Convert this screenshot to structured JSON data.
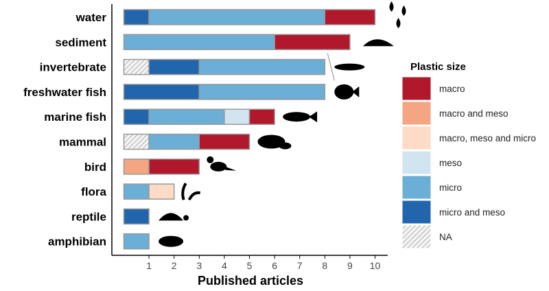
{
  "chart_data": {
    "type": "bar",
    "orientation": "horizontal",
    "stacked": true,
    "xlabel": "Published articles",
    "ylabel": "",
    "xlim": [
      0,
      10.5
    ],
    "xticks": [
      1,
      2,
      3,
      4,
      5,
      6,
      7,
      8,
      9,
      10
    ],
    "grid": false,
    "legend_title": "Plastic size",
    "legend_position": "right",
    "series": [
      {
        "name": "macro",
        "color": "#B2182B"
      },
      {
        "name": "macro and meso",
        "color": "#F4A582"
      },
      {
        "name": "macro, meso and micro",
        "color": "#FDDBC7"
      },
      {
        "name": "meso",
        "color": "#D1E5F0"
      },
      {
        "name": "micro",
        "color": "#6BAED6"
      },
      {
        "name": "micro and meso",
        "color": "#2166AC"
      },
      {
        "name": "NA",
        "color": "hatched"
      }
    ],
    "categories": [
      {
        "name": "water",
        "icon": "water-drops-icon",
        "segments": [
          [
            "micro and meso",
            1
          ],
          [
            "micro",
            7
          ],
          [
            "macro",
            2
          ]
        ]
      },
      {
        "name": "sediment",
        "icon": "sediment-pile-icon",
        "segments": [
          [
            "micro",
            6
          ],
          [
            "macro",
            3
          ]
        ]
      },
      {
        "name": "invertebrate",
        "icon": "crayfish-icon",
        "segments": [
          [
            "NA",
            1
          ],
          [
            "micro and meso",
            2
          ],
          [
            "micro",
            5
          ]
        ]
      },
      {
        "name": "freshwater fish",
        "icon": "freshwater-fish-icon",
        "segments": [
          [
            "micro and meso",
            3
          ],
          [
            "micro",
            5
          ]
        ]
      },
      {
        "name": "marine fish",
        "icon": "marine-fish-icon",
        "segments": [
          [
            "micro and meso",
            1
          ],
          [
            "micro",
            3
          ],
          [
            "meso",
            1
          ],
          [
            "macro",
            1
          ]
        ]
      },
      {
        "name": "mammal",
        "icon": "manatee-icon",
        "segments": [
          [
            "NA",
            1
          ],
          [
            "micro",
            2
          ],
          [
            "macro",
            2
          ]
        ]
      },
      {
        "name": "bird",
        "icon": "crow-icon",
        "segments": [
          [
            "macro and meso",
            1
          ],
          [
            "macro",
            2
          ]
        ]
      },
      {
        "name": "flora",
        "icon": "seaweed-icon",
        "segments": [
          [
            "micro",
            1
          ],
          [
            "macro, meso and micro",
            1
          ]
        ]
      },
      {
        "name": "reptile",
        "icon": "turtle-icon",
        "segments": [
          [
            "micro and meso",
            1
          ]
        ]
      },
      {
        "name": "amphibian",
        "icon": "frog-icon",
        "segments": [
          [
            "micro",
            1
          ]
        ]
      }
    ]
  }
}
